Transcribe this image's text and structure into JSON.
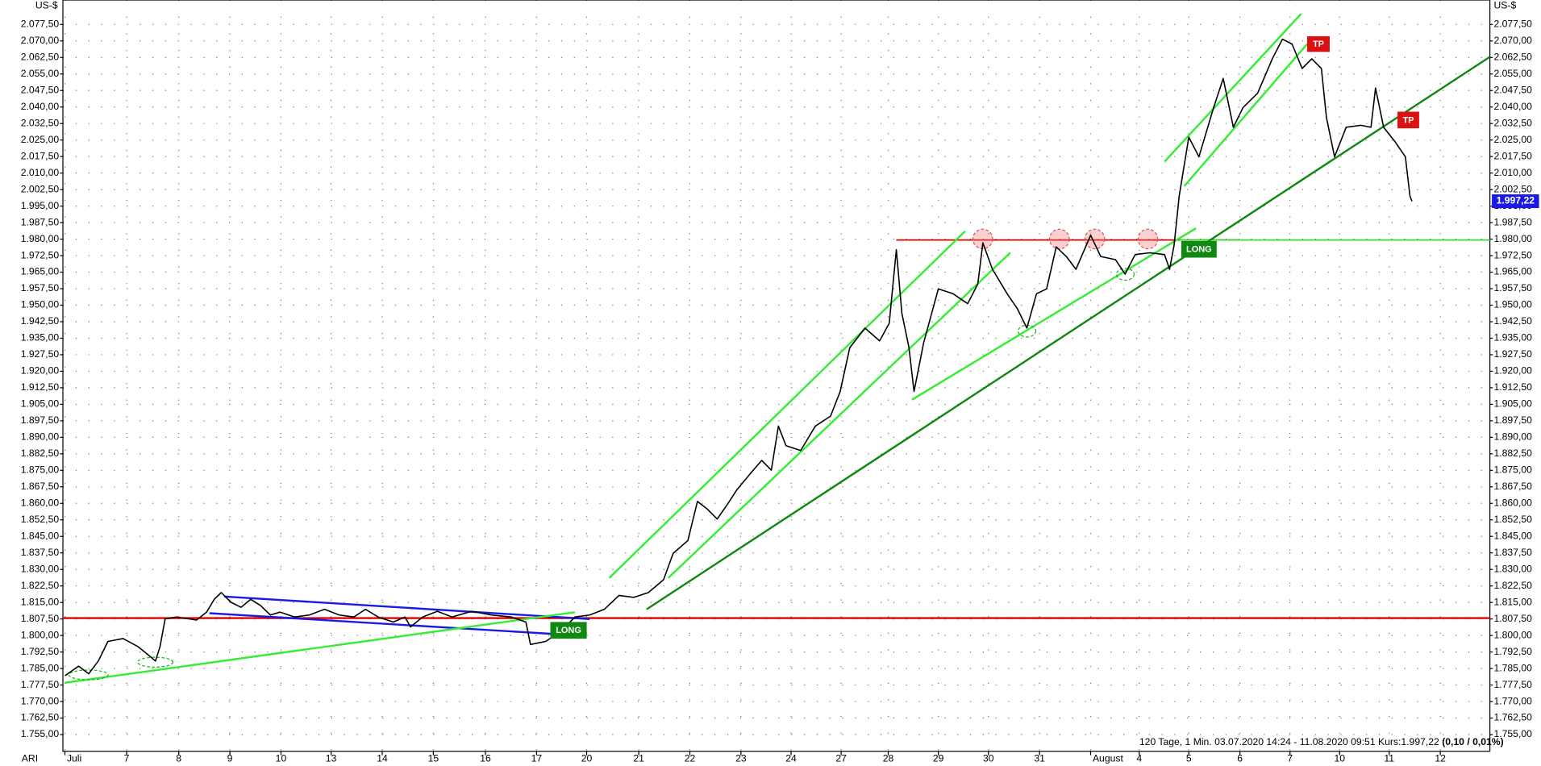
{
  "chart_data": {
    "type": "line",
    "color": "#000000",
    "y_unit": "US-$",
    "instrument": "ARI",
    "footer": "120 Tage, 1 Min. 03.07.2020 14:24 - 11.08.2020 09:51 Kurs:1.997,22",
    "footer_change": "(0,10 / 0,01%)",
    "current_price": {
      "value": 1997.22,
      "label": "1.997,22"
    },
    "annotations": [
      "LONG",
      "LONG",
      "TP",
      "TP"
    ],
    "grid": true,
    "xlim": [
      -0.04,
      28.16
    ],
    "ylim": [
      1747.4,
      2088.6
    ],
    "xticks": [
      {
        "value": 0,
        "label": "Juli"
      },
      {
        "value": 1.22,
        "label": "7"
      },
      {
        "value": 2.25,
        "label": "8"
      },
      {
        "value": 3.26,
        "label": "9"
      },
      {
        "value": 4.27,
        "label": "10"
      },
      {
        "value": 5.26,
        "label": "13"
      },
      {
        "value": 6.27,
        "label": "14"
      },
      {
        "value": 7.28,
        "label": "15"
      },
      {
        "value": 8.31,
        "label": "16"
      },
      {
        "value": 9.32,
        "label": "17"
      },
      {
        "value": 10.31,
        "label": "20"
      },
      {
        "value": 11.34,
        "label": "21"
      },
      {
        "value": 12.35,
        "label": "22"
      },
      {
        "value": 13.36,
        "label": "23"
      },
      {
        "value": 14.35,
        "label": "24"
      },
      {
        "value": 15.34,
        "label": "27"
      },
      {
        "value": 16.27,
        "label": "28"
      },
      {
        "value": 17.26,
        "label": "29"
      },
      {
        "value": 18.25,
        "label": "30"
      },
      {
        "value": 19.26,
        "label": "31"
      },
      {
        "value": 20.27,
        "label": "August"
      },
      {
        "value": 21.23,
        "label": "4"
      },
      {
        "value": 22.21,
        "label": "5"
      },
      {
        "value": 23.22,
        "label": "6"
      },
      {
        "value": 24.21,
        "label": "7"
      },
      {
        "value": 25.19,
        "label": "10"
      },
      {
        "value": 26.17,
        "label": "11"
      },
      {
        "value": 27.18,
        "label": "12"
      }
    ],
    "yticks": [
      {
        "value": 2077.5,
        "label": "2.077,50"
      },
      {
        "value": 2070,
        "label": "2.070,00"
      },
      {
        "value": 2062.5,
        "label": "2.062,50"
      },
      {
        "value": 2055,
        "label": "2.055,00"
      },
      {
        "value": 2047.5,
        "label": "2.047,50"
      },
      {
        "value": 2040,
        "label": "2.040,00"
      },
      {
        "value": 2032.5,
        "label": "2.032,50"
      },
      {
        "value": 2025,
        "label": "2.025,00"
      },
      {
        "value": 2017.5,
        "label": "2.017,50"
      },
      {
        "value": 2010,
        "label": "2.010,00"
      },
      {
        "value": 2002.5,
        "label": "2.002,50"
      },
      {
        "value": 1995,
        "label": "1.995,00"
      },
      {
        "value": 1987.5,
        "label": "1.987,50"
      },
      {
        "value": 1980,
        "label": "1.980,00"
      },
      {
        "value": 1972.5,
        "label": "1.972,50"
      },
      {
        "value": 1965,
        "label": "1.965,00"
      },
      {
        "value": 1957.5,
        "label": "1.957,50"
      },
      {
        "value": 1950,
        "label": "1.950,00"
      },
      {
        "value": 1942.5,
        "label": "1.942,50"
      },
      {
        "value": 1935,
        "label": "1.935,00"
      },
      {
        "value": 1927.5,
        "label": "1.927,50"
      },
      {
        "value": 1920,
        "label": "1.920,00"
      },
      {
        "value": 1912.5,
        "label": "1.912,50"
      },
      {
        "value": 1905,
        "label": "1.905,00"
      },
      {
        "value": 1897.5,
        "label": "1.897,50"
      },
      {
        "value": 1890,
        "label": "1.890,00"
      },
      {
        "value": 1882.5,
        "label": "1.882,50"
      },
      {
        "value": 1875,
        "label": "1.875,00"
      },
      {
        "value": 1867.5,
        "label": "1.867,50"
      },
      {
        "value": 1860,
        "label": "1.860,00"
      },
      {
        "value": 1852.5,
        "label": "1.852,50"
      },
      {
        "value": 1845,
        "label": "1.845,00"
      },
      {
        "value": 1837.5,
        "label": "1.837,50"
      },
      {
        "value": 1830,
        "label": "1.830,00"
      },
      {
        "value": 1822.5,
        "label": "1.822,50"
      },
      {
        "value": 1815,
        "label": "1.815,00"
      },
      {
        "value": 1807.5,
        "label": "1.807,50"
      },
      {
        "value": 1800,
        "label": "1.800,00"
      },
      {
        "value": 1792.5,
        "label": "1.792,50"
      },
      {
        "value": 1785,
        "label": "1.785,00"
      },
      {
        "value": 1777.5,
        "label": "1.777,50"
      },
      {
        "value": 1770,
        "label": "1.770,00"
      },
      {
        "value": 1762.5,
        "label": "1.762,50"
      },
      {
        "value": 1755,
        "label": "1.755,00"
      }
    ],
    "x": [
      0,
      0.27,
      0.47,
      0.66,
      0.85,
      1.15,
      1.44,
      1.63,
      1.79,
      1.88,
      1.98,
      2.21,
      2.6,
      2.8,
      2.95,
      3.09,
      3.28,
      3.48,
      3.67,
      3.86,
      4.06,
      4.25,
      4.54,
      4.83,
      5.13,
      5.42,
      5.71,
      5.94,
      6.19,
      6.49,
      6.72,
      6.83,
      7.07,
      7.36,
      7.65,
      8.04,
      8.43,
      8.82,
      9.11,
      9.2,
      9.5,
      9.79,
      10.08,
      10.37,
      10.66,
      10.95,
      11.24,
      11.53,
      11.83,
      12.02,
      12.31,
      12.5,
      12.7,
      12.89,
      13.09,
      13.28,
      13.57,
      13.77,
      13.96,
      14.1,
      14.25,
      14.54,
      14.83,
      15.13,
      15.32,
      15.51,
      15.81,
      16.1,
      16.29,
      16.43,
      16.54,
      16.68,
      16.78,
      16.97,
      17.26,
      17.55,
      17.84,
      18.04,
      18.14,
      18.33,
      18.62,
      18.82,
      19.01,
      19.2,
      19.4,
      19.59,
      19.79,
      19.98,
      20.27,
      20.47,
      20.76,
      20.95,
      21.15,
      21.44,
      21.73,
      21.83,
      21.92,
      22.02,
      22.21,
      22.41,
      22.7,
      22.89,
      23.09,
      23.28,
      23.57,
      23.86,
      24.06,
      24.25,
      24.45,
      24.64,
      24.83,
      24.93,
      25.09,
      25.32,
      25.61,
      25.81,
      25.9,
      26.06,
      26.29,
      26.49,
      26.58,
      26.62
    ],
    "values": [
      1781.7,
      1786.1,
      1782.6,
      1788.4,
      1797.3,
      1798.6,
      1795.0,
      1791.5,
      1788.4,
      1795.0,
      1807.5,
      1808.4,
      1807.0,
      1810.6,
      1816.4,
      1819.5,
      1815.1,
      1812.8,
      1816.4,
      1813.7,
      1809.3,
      1810.6,
      1808.4,
      1809.3,
      1811.9,
      1809.3,
      1808.4,
      1811.9,
      1808.4,
      1806.1,
      1808.4,
      1803.9,
      1808.4,
      1811.0,
      1808.4,
      1811.0,
      1809.3,
      1808.4,
      1806.1,
      1795.9,
      1797.3,
      1801.7,
      1808.4,
      1809.3,
      1811.9,
      1818.2,
      1817.3,
      1819.5,
      1825.3,
      1837.3,
      1843.1,
      1860.9,
      1857.3,
      1852.9,
      1859.5,
      1866.2,
      1874.2,
      1879.5,
      1875.1,
      1895.1,
      1886.2,
      1884.0,
      1895.1,
      1899.6,
      1910.8,
      1930.7,
      1939.6,
      1933.8,
      1941.8,
      1975.2,
      1946.3,
      1930.7,
      1910.8,
      1932.9,
      1957.4,
      1955.2,
      1950.7,
      1959.6,
      1978.3,
      1966.3,
      1955.2,
      1948.5,
      1939.6,
      1955.2,
      1957.4,
      1976.5,
      1972.1,
      1966.3,
      1981.8,
      1972.1,
      1970.7,
      1964.1,
      1973.0,
      1973.8,
      1973.0,
      1966.3,
      1977.4,
      1999.6,
      2026.3,
      2017.4,
      2039.7,
      2053.0,
      2030.8,
      2039.7,
      2046.3,
      2061.9,
      2070.8,
      2068.6,
      2057.5,
      2061.9,
      2057.5,
      2035.2,
      2017.4,
      2030.8,
      2031.7,
      2030.8,
      2048.6,
      2030.8,
      2024.1,
      2017.4,
      1999.6,
      1997.2
    ]
  }
}
